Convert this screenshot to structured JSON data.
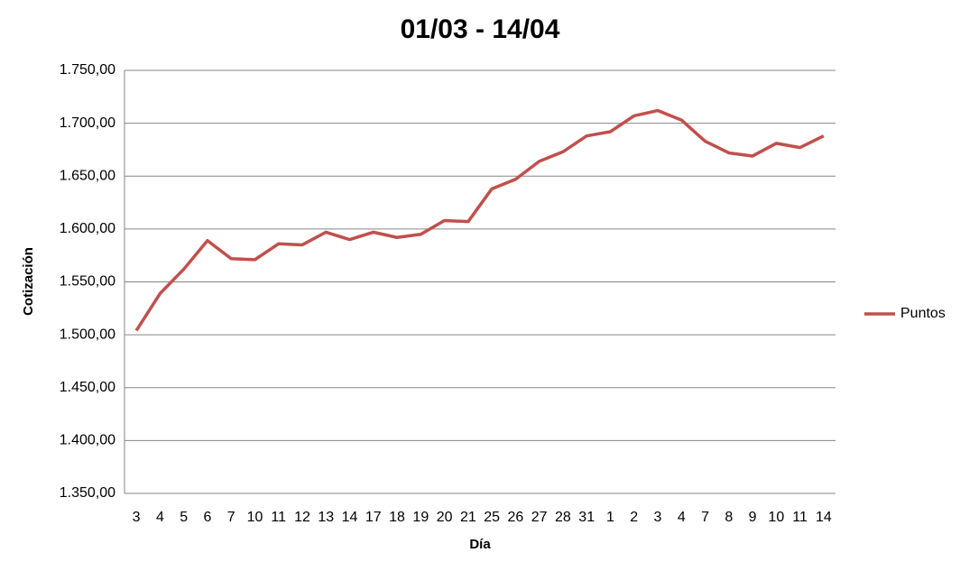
{
  "chart_data": {
    "type": "line",
    "title": "01/03 - 14/04",
    "x_label": "Día",
    "y_label": "Cotización",
    "categories": [
      "3",
      "4",
      "5",
      "6",
      "7",
      "10",
      "11",
      "12",
      "13",
      "14",
      "17",
      "18",
      "19",
      "20",
      "21",
      "25",
      "26",
      "27",
      "28",
      "31",
      "1",
      "2",
      "3",
      "4",
      "7",
      "8",
      "9",
      "10",
      "11",
      "14"
    ],
    "series": [
      {
        "name": "Puntos",
        "color": "#c0504d",
        "values": [
          1504,
          1539,
          1562,
          1589,
          1572,
          1571,
          1586,
          1585,
          1597,
          1590,
          1597,
          1592,
          1595,
          1608,
          1607,
          1638,
          1647,
          1664,
          1673,
          1688,
          1692,
          1707,
          1712,
          1703,
          1683,
          1672,
          1669,
          1681,
          1677,
          1688
        ]
      }
    ],
    "ylim": [
      1350,
      1750
    ],
    "yticks": [
      {
        "value": 1350,
        "label": "1.350,00"
      },
      {
        "value": 1400,
        "label": "1.400,00"
      },
      {
        "value": 1450,
        "label": "1.450,00"
      },
      {
        "value": 1500,
        "label": "1.500,00"
      },
      {
        "value": 1550,
        "label": "1.550,00"
      },
      {
        "value": 1600,
        "label": "1.600,00"
      },
      {
        "value": 1650,
        "label": "1.650,00"
      },
      {
        "value": 1700,
        "label": "1.700,00"
      },
      {
        "value": 1750,
        "label": "1.750,00"
      }
    ],
    "grid": true,
    "legend": "right"
  }
}
